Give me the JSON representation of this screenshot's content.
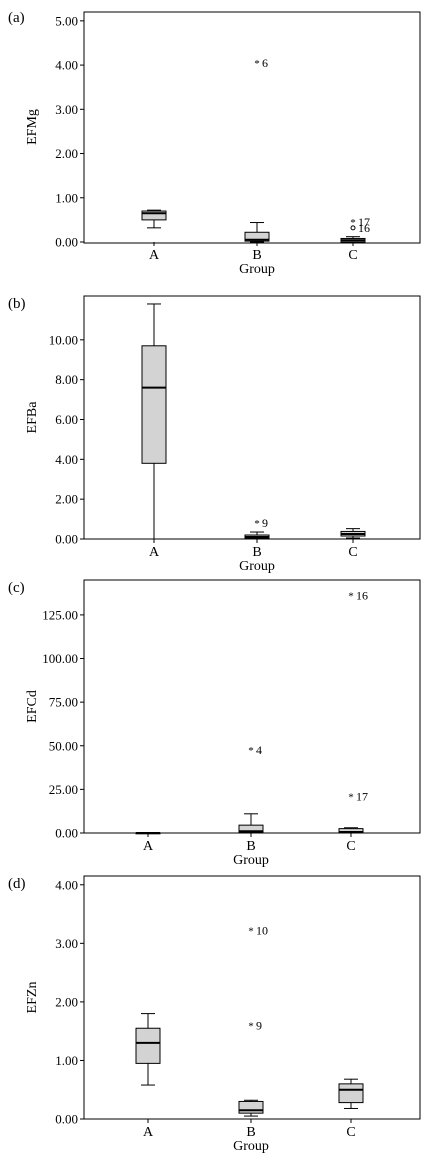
{
  "chart_data": [
    {
      "panel_label": "(a)",
      "type": "box",
      "ylabel": "EFMg",
      "xlabel": "Group",
      "categories": [
        "A",
        "B",
        "C"
      ],
      "ylim": [
        0,
        5.2
      ],
      "yticks": [
        "0.00",
        "1.00",
        "2.00",
        "3.00",
        "4.00",
        "5.00"
      ],
      "boxes": [
        {
          "category": "A",
          "min": 0.32,
          "q1": 0.5,
          "median": 0.65,
          "q3": 0.7,
          "max": 0.72
        },
        {
          "category": "B",
          "min": 0.0,
          "q1": 0.02,
          "median": 0.05,
          "q3": 0.22,
          "max": 0.44
        },
        {
          "category": "C",
          "min": 0.0,
          "q1": 0.0,
          "median": 0.04,
          "q3": 0.08,
          "max": 0.12
        }
      ],
      "outliers": [
        {
          "category": "B",
          "value": 4.05,
          "label": "6",
          "marker": "star"
        },
        {
          "category": "C",
          "value": 0.45,
          "label": "17",
          "marker": "star"
        },
        {
          "category": "C",
          "value": 0.32,
          "label": "16",
          "marker": "circle"
        }
      ]
    },
    {
      "panel_label": "(b)",
      "type": "box",
      "ylabel": "EFBa",
      "xlabel": "Group",
      "categories": [
        "A",
        "B",
        "C"
      ],
      "ylim": [
        0,
        12.2
      ],
      "yticks": [
        "0.00",
        "2.00",
        "4.00",
        "6.00",
        "8.00",
        "10.00"
      ],
      "boxes": [
        {
          "category": "A",
          "min": 0.0,
          "q1": 3.8,
          "median": 7.6,
          "q3": 9.7,
          "max": 11.8
        },
        {
          "category": "B",
          "min": 0.0,
          "q1": 0.03,
          "median": 0.1,
          "q3": 0.2,
          "max": 0.35
        },
        {
          "category": "C",
          "min": 0.05,
          "q1": 0.15,
          "median": 0.25,
          "q3": 0.38,
          "max": 0.52
        }
      ],
      "outliers": [
        {
          "category": "B",
          "value": 0.8,
          "label": "9",
          "marker": "star"
        }
      ]
    },
    {
      "panel_label": "(c)",
      "type": "box",
      "ylabel": "EFCd",
      "xlabel": "Group",
      "categories": [
        "A",
        "B",
        "C"
      ],
      "ylim": [
        0,
        145
      ],
      "yticks": [
        "0.00",
        "25.00",
        "50.00",
        "75.00",
        "100.00",
        "125.00"
      ],
      "boxes": [
        {
          "category": "A",
          "min": 0.0,
          "q1": 0.0,
          "median": 0.0,
          "q3": 0.1,
          "max": 0.2
        },
        {
          "category": "B",
          "min": 0.0,
          "q1": 0.3,
          "median": 1.0,
          "q3": 4.5,
          "max": 11.0
        },
        {
          "category": "C",
          "min": 0.0,
          "q1": 0.2,
          "median": 0.6,
          "q3": 2.5,
          "max": 3.0
        }
      ],
      "outliers": [
        {
          "category": "B",
          "value": 47.5,
          "label": "4",
          "marker": "star"
        },
        {
          "category": "C",
          "value": 136,
          "label": "16",
          "marker": "star"
        },
        {
          "category": "C",
          "value": 21,
          "label": "17",
          "marker": "star"
        }
      ]
    },
    {
      "panel_label": "(d)",
      "type": "box",
      "ylabel": "EFZn",
      "xlabel": "Group",
      "categories": [
        "A",
        "B",
        "C"
      ],
      "ylim": [
        0,
        4.15
      ],
      "yticks": [
        "0.00",
        "1.00",
        "2.00",
        "3.00",
        "4.00"
      ],
      "boxes": [
        {
          "category": "A",
          "min": 0.58,
          "q1": 0.95,
          "median": 1.3,
          "q3": 1.55,
          "max": 1.8
        },
        {
          "category": "B",
          "min": 0.05,
          "q1": 0.1,
          "median": 0.15,
          "q3": 0.3,
          "max": 0.32
        },
        {
          "category": "C",
          "min": 0.18,
          "q1": 0.28,
          "median": 0.5,
          "q3": 0.6,
          "max": 0.68
        }
      ],
      "outliers": [
        {
          "category": "B",
          "value": 3.22,
          "label": "10",
          "marker": "star"
        },
        {
          "category": "B",
          "value": 1.6,
          "label": "9",
          "marker": "star"
        }
      ]
    }
  ]
}
